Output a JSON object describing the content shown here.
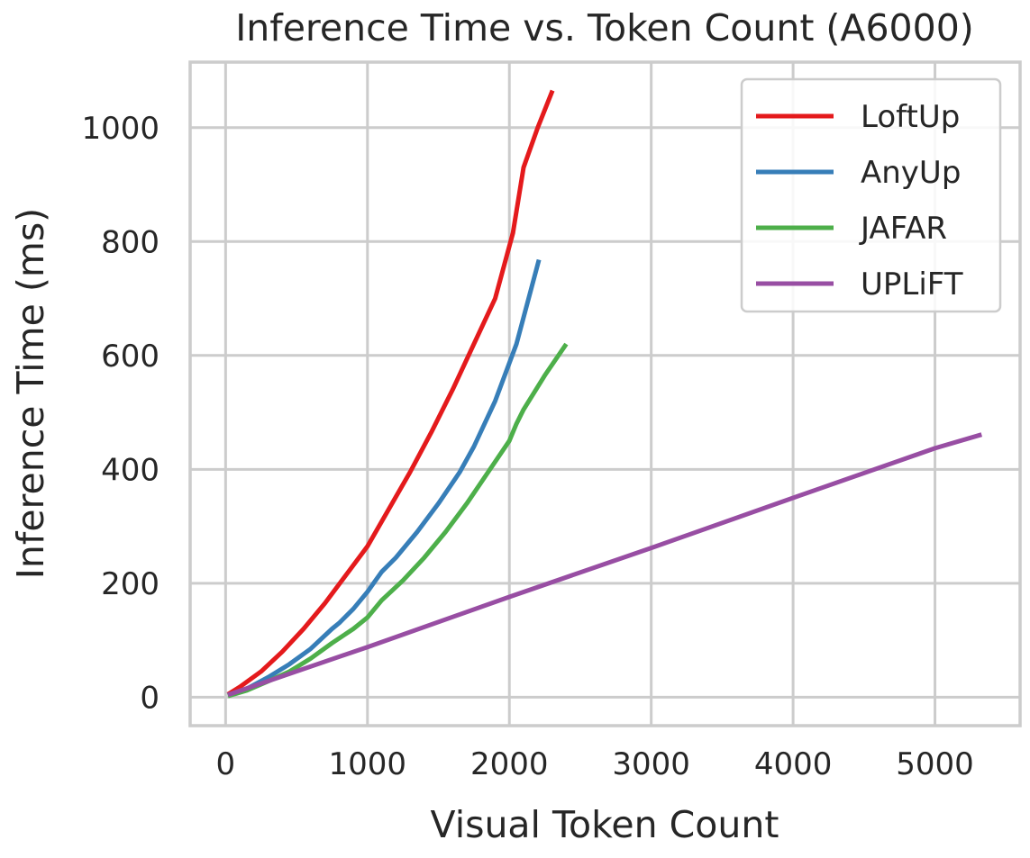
{
  "chart_data": {
    "type": "line",
    "title": "Inference Time vs. Token Count (A6000)",
    "xlabel": "Visual Token Count",
    "ylabel": "Inference Time (ms)",
    "xlim": [
      -250,
      5600
    ],
    "ylim": [
      -50,
      1115
    ],
    "xticks": [
      0,
      1000,
      2000,
      3000,
      4000,
      5000
    ],
    "yticks": [
      0,
      200,
      400,
      600,
      800,
      1000
    ],
    "xtick_labels": [
      "0",
      "1000",
      "2000",
      "3000",
      "4000",
      "5000"
    ],
    "ytick_labels": [
      "0",
      "200",
      "400",
      "600",
      "800",
      "1000"
    ],
    "grid": true,
    "legend_position": "top-right",
    "series": [
      {
        "name": "LoftUp",
        "color": "#e41a1c",
        "x": [
          16,
          100,
          250,
          400,
          550,
          700,
          850,
          1000,
          1150,
          1300,
          1450,
          1600,
          1750,
          1900,
          2025,
          2100,
          2200,
          2304
        ],
        "y": [
          5,
          18,
          45,
          80,
          120,
          165,
          215,
          265,
          330,
          395,
          465,
          540,
          620,
          700,
          815,
          930,
          1000,
          1065
        ]
      },
      {
        "name": "AnyUp",
        "color": "#377eb8",
        "x": [
          16,
          150,
          300,
          450,
          600,
          750,
          800,
          900,
          1000,
          1100,
          1200,
          1350,
          1500,
          1650,
          1750,
          1900,
          2050,
          2209
        ],
        "y": [
          3,
          15,
          35,
          58,
          85,
          120,
          130,
          155,
          185,
          220,
          245,
          290,
          340,
          395,
          440,
          520,
          620,
          768
        ]
      },
      {
        "name": "JAFAR",
        "color": "#4daf4a",
        "x": [
          16,
          150,
          300,
          450,
          600,
          750,
          900,
          1000,
          1100,
          1250,
          1400,
          1550,
          1700,
          1850,
          2000,
          2050,
          2100,
          2250,
          2401
        ],
        "y": [
          2,
          12,
          28,
          45,
          68,
          95,
          120,
          140,
          170,
          205,
          245,
          290,
          340,
          395,
          450,
          480,
          505,
          565,
          620
        ]
      },
      {
        "name": "UPLiFT",
        "color": "#984ea3",
        "x": [
          16,
          1000,
          2000,
          3000,
          4000,
          5000,
          5329
        ],
        "y": [
          4,
          88,
          176,
          262,
          350,
          437,
          461
        ]
      }
    ]
  }
}
